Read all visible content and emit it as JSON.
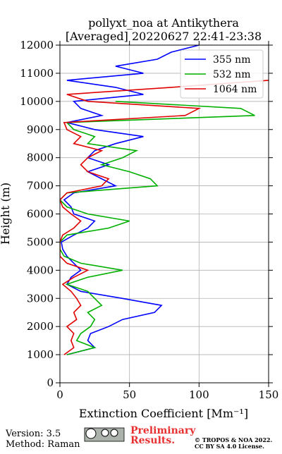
{
  "chart_data": {
    "type": "line",
    "title": [
      "pollyxt_noa at Antikythera",
      "[Averaged] 20220627 22:41-23:38"
    ],
    "x_label": "Extinction Coefficient [Mm⁻¹]",
    "y_label": "Height (m)",
    "y": [
      1000,
      1250,
      1500,
      1750,
      2000,
      2250,
      2500,
      2750,
      3000,
      3250,
      3500,
      3750,
      4000,
      4250,
      4500,
      4750,
      5000,
      5250,
      5500,
      5750,
      6000,
      6250,
      6500,
      6750,
      7000,
      7250,
      7500,
      7750,
      8000,
      8250,
      8500,
      8750,
      9000,
      9250,
      9500,
      9750,
      10000,
      10250,
      10500,
      10750,
      11000,
      11250,
      11500,
      11750,
      12000
    ],
    "series": [
      {
        "name": "355 nm",
        "color": "#0000ff",
        "values": [
          5,
          25,
          20,
          22,
          35,
          45,
          68,
          73,
          45,
          15,
          5,
          8,
          15,
          10,
          5,
          2,
          1,
          10,
          20,
          25,
          10,
          8,
          3,
          10,
          40,
          30,
          20,
          35,
          20,
          25,
          40,
          60,
          25,
          5,
          30,
          15,
          10,
          60,
          40,
          5,
          60,
          40,
          70,
          80,
          100
        ]
      },
      {
        "name": "532 nm",
        "color": "#00b000",
        "values": [
          5,
          25,
          12,
          15,
          22,
          25,
          20,
          30,
          25,
          20,
          5,
          20,
          45,
          15,
          3,
          0,
          0,
          5,
          35,
          50,
          20,
          5,
          0,
          5,
          70,
          65,
          50,
          30,
          45,
          55,
          20,
          25,
          10,
          5,
          140,
          130,
          40,
          null,
          null,
          null,
          null,
          null,
          null,
          null,
          null
        ]
      },
      {
        "name": "1064 nm",
        "color": "#e00000",
        "values": [
          3,
          10,
          8,
          10,
          5,
          12,
          10,
          15,
          12,
          8,
          2,
          10,
          20,
          5,
          0,
          0,
          0,
          2,
          10,
          15,
          8,
          2,
          0,
          5,
          30,
          35,
          20,
          15,
          20,
          30,
          10,
          15,
          5,
          3,
          90,
          100,
          20,
          5,
          80,
          150,
          null,
          null,
          null,
          null,
          null
        ]
      }
    ],
    "xlim": [
      0,
      150
    ],
    "xticks": [
      0,
      50,
      100,
      150
    ],
    "ylim": [
      0,
      12000
    ],
    "yticks": [
      0,
      1000,
      2000,
      3000,
      4000,
      5000,
      6000,
      7000,
      8000,
      9000,
      10000,
      11000,
      12000
    ],
    "grid": true,
    "legend": "upper right",
    "footer": {
      "version": "Version: 3.5",
      "method": "Method: Raman",
      "status": [
        "Preliminary",
        "Results."
      ],
      "copyright": [
        "© TROPOS & NOA 2022.",
        "CC BY SA 4.0 License."
      ]
    }
  }
}
